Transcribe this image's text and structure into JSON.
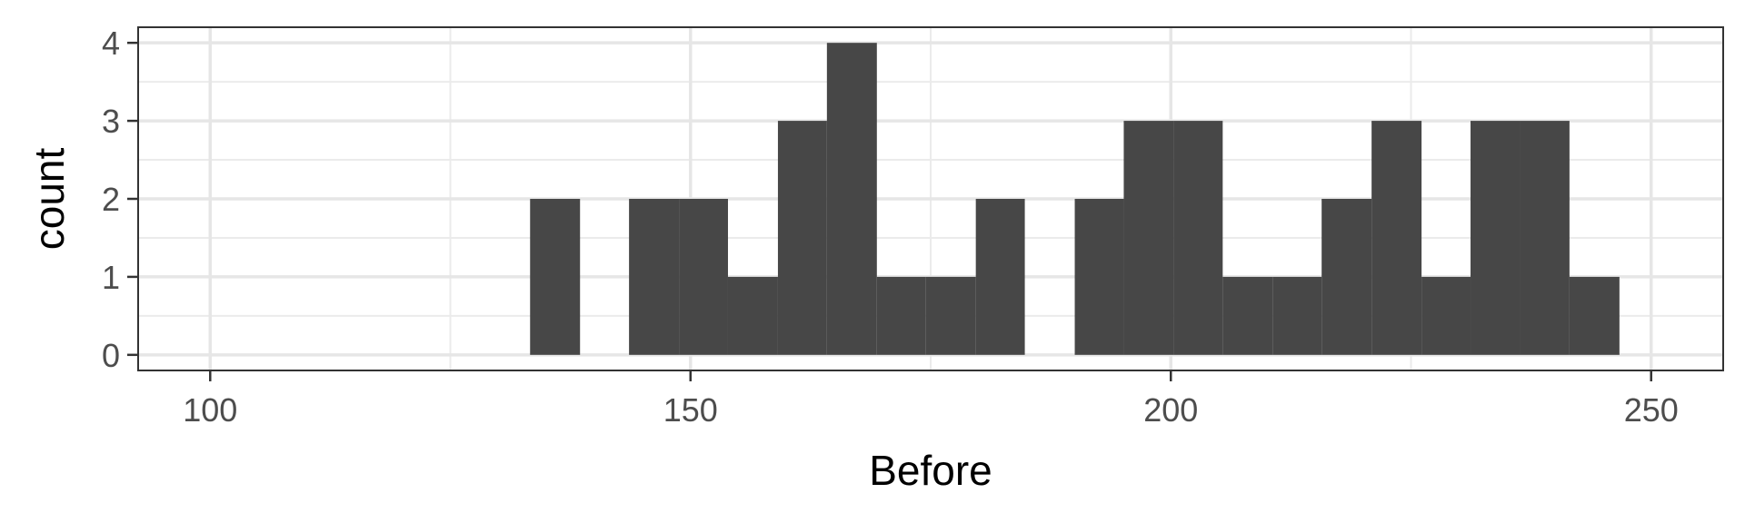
{
  "chart_data": {
    "type": "bar",
    "subtype": "histogram",
    "title": "",
    "xlabel": "Before",
    "ylabel": "count",
    "xlim": [
      92.5,
      257.5
    ],
    "ylim": [
      -0.2,
      4.2
    ],
    "x_ticks": [
      100,
      150,
      200,
      250
    ],
    "y_ticks": [
      0,
      1,
      2,
      3,
      4
    ],
    "grid": true,
    "theme": "ggplot2 theme_bw",
    "bar_color": "#474747",
    "bin_width": 5.15,
    "bins": [
      {
        "start": 133.3,
        "end": 138.5,
        "count": 2
      },
      {
        "start": 143.6,
        "end": 148.8,
        "count": 2
      },
      {
        "start": 148.8,
        "end": 153.9,
        "count": 2
      },
      {
        "start": 153.9,
        "end": 159.1,
        "count": 1
      },
      {
        "start": 159.1,
        "end": 164.2,
        "count": 3
      },
      {
        "start": 164.2,
        "end": 169.4,
        "count": 4
      },
      {
        "start": 169.4,
        "end": 174.5,
        "count": 1
      },
      {
        "start": 174.5,
        "end": 179.7,
        "count": 1
      },
      {
        "start": 179.7,
        "end": 184.8,
        "count": 2
      },
      {
        "start": 190.0,
        "end": 195.1,
        "count": 2
      },
      {
        "start": 195.1,
        "end": 200.3,
        "count": 3
      },
      {
        "start": 200.3,
        "end": 205.4,
        "count": 3
      },
      {
        "start": 205.4,
        "end": 210.6,
        "count": 1
      },
      {
        "start": 210.6,
        "end": 215.7,
        "count": 1
      },
      {
        "start": 215.7,
        "end": 220.9,
        "count": 2
      },
      {
        "start": 220.9,
        "end": 226.1,
        "count": 3
      },
      {
        "start": 226.1,
        "end": 231.2,
        "count": 1
      },
      {
        "start": 231.2,
        "end": 236.4,
        "count": 3
      },
      {
        "start": 236.4,
        "end": 241.5,
        "count": 3
      },
      {
        "start": 241.5,
        "end": 246.7,
        "count": 1
      }
    ]
  }
}
